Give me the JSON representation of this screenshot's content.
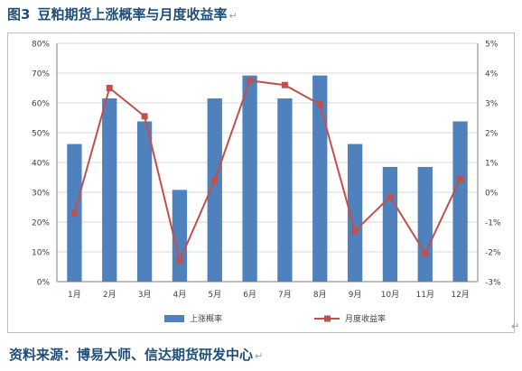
{
  "figure": {
    "label": "图3",
    "title": "豆粕期货上涨概率与月度收益率",
    "source": "资料来源：博易大师、信达期货研发中心",
    "return_mark": "↵"
  },
  "chart_data": {
    "type": "bar",
    "categories": [
      "1月",
      "2月",
      "3月",
      "4月",
      "5月",
      "6月",
      "7月",
      "8月",
      "9月",
      "10月",
      "11月",
      "12月"
    ],
    "series": [
      {
        "name": "上涨概率",
        "type": "bar",
        "axis": "left",
        "values": [
          46.2,
          61.5,
          53.8,
          30.8,
          61.5,
          69.2,
          61.5,
          69.2,
          46.2,
          38.5,
          38.5,
          53.8
        ]
      },
      {
        "name": "月度收益率",
        "type": "line",
        "axis": "right",
        "values": [
          -0.7,
          3.5,
          2.55,
          -2.3,
          0.4,
          3.75,
          3.6,
          2.95,
          -1.3,
          -0.15,
          -2.05,
          0.45
        ]
      }
    ],
    "y_left": {
      "min": 0,
      "max": 80,
      "step": 10,
      "suffix": "%"
    },
    "y_right": {
      "min": -3,
      "max": 5,
      "step": 1,
      "suffix": "%"
    },
    "legend_position": "bottom",
    "grid": true,
    "colors": {
      "bar": "#4F81BD",
      "line": "#C0504D",
      "grid": "#d9d9d9",
      "axis": "#7f7f7f"
    }
  }
}
